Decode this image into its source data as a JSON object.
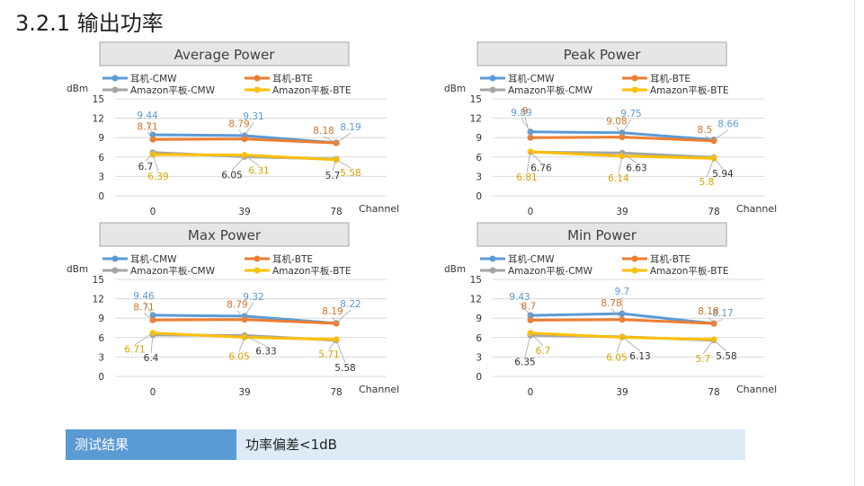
{
  "page": {
    "title": "3.2.1 输出功率"
  },
  "colors": {
    "s0": "#5b9bd5",
    "s1": "#ed7d31",
    "s2": "#a5a5a5",
    "s3": "#ffc000",
    "s0_label": "#5b9bd5",
    "s1_label": "#d07328",
    "s2_label": "#333333",
    "s3_label": "#d9a400"
  },
  "result": {
    "label": "测试结果",
    "value": "功率偏差<1dB"
  },
  "chart_data": [
    {
      "type": "line",
      "title": "Average Power",
      "ylabel": "dBm",
      "xlabel": "Channel",
      "categories": [
        "0",
        "39",
        "78"
      ],
      "ylim": [
        0,
        15
      ],
      "yticks": [
        "0",
        "3",
        "6",
        "9",
        "12",
        "15"
      ],
      "legend": "top",
      "grid": true,
      "series": [
        {
          "name": "耳机-CMW",
          "values": [
            9.44,
            9.31,
            8.19
          ]
        },
        {
          "name": "耳机-BTE",
          "values": [
            8.71,
            8.79,
            8.18
          ]
        },
        {
          "name": "Amazon平板-CMW",
          "values": [
            6.7,
            6.05,
            5.7
          ]
        },
        {
          "name": "Amazon平板-BTE",
          "values": [
            6.39,
            6.31,
            5.58
          ]
        }
      ]
    },
    {
      "type": "line",
      "title": "Peak Power",
      "ylabel": "dBm",
      "xlabel": "Channel",
      "categories": [
        "0",
        "39",
        "78"
      ],
      "ylim": [
        0,
        15
      ],
      "yticks": [
        "0",
        "3",
        "6",
        "9",
        "12",
        "15"
      ],
      "legend": "top",
      "grid": true,
      "series": [
        {
          "name": "耳机-CMW",
          "values": [
            9.89,
            9.75,
            8.66
          ]
        },
        {
          "name": "耳机-BTE",
          "values": [
            9,
            9.08,
            8.5
          ]
        },
        {
          "name": "Amazon平板-CMW",
          "values": [
            6.76,
            6.63,
            5.94
          ]
        },
        {
          "name": "Amazon平板-BTE",
          "values": [
            6.81,
            6.14,
            5.8
          ]
        }
      ]
    },
    {
      "type": "line",
      "title": "Max Power",
      "ylabel": "dBm",
      "xlabel": "Channel",
      "categories": [
        "0",
        "39",
        "78"
      ],
      "ylim": [
        0,
        15
      ],
      "yticks": [
        "0",
        "3",
        "6",
        "9",
        "12",
        "15"
      ],
      "legend": "top",
      "grid": true,
      "series": [
        {
          "name": "耳机-CMW",
          "values": [
            9.46,
            9.32,
            8.22
          ]
        },
        {
          "name": "耳机-BTE",
          "values": [
            8.71,
            8.79,
            8.19
          ]
        },
        {
          "name": "Amazon平板-CMW",
          "values": [
            6.4,
            6.33,
            5.58
          ]
        },
        {
          "name": "Amazon平板-BTE",
          "values": [
            6.71,
            6.05,
            5.71
          ]
        }
      ]
    },
    {
      "type": "line",
      "title": "Min Power",
      "ylabel": "dBm",
      "xlabel": "Channel",
      "categories": [
        "0",
        "39",
        "78"
      ],
      "ylim": [
        0,
        15
      ],
      "yticks": [
        "0",
        "3",
        "6",
        "9",
        "12",
        "15"
      ],
      "legend": "top",
      "grid": true,
      "series": [
        {
          "name": "耳机-CMW",
          "values": [
            9.43,
            9.7,
            8.17
          ]
        },
        {
          "name": "耳机-BTE",
          "values": [
            8.7,
            8.78,
            8.18
          ]
        },
        {
          "name": "Amazon平板-CMW",
          "values": [
            6.35,
            6.13,
            5.58
          ]
        },
        {
          "name": "Amazon平板-BTE",
          "values": [
            6.7,
            6.05,
            5.7
          ]
        }
      ]
    }
  ]
}
